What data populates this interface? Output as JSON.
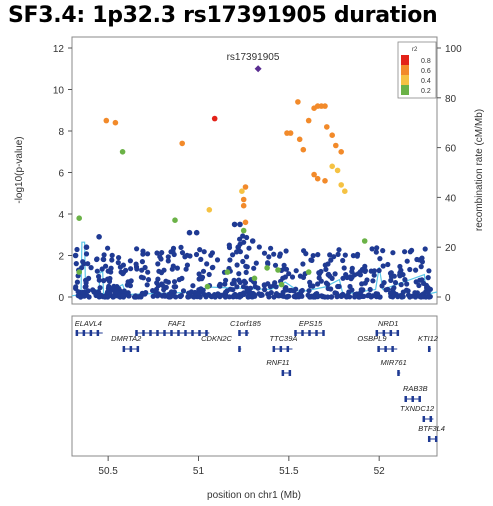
{
  "slide_title": "SF3.4: 1p32.3 rs17391905 duration",
  "colors": {
    "r2_high": "#e32219",
    "r2_08": "#f28a2a",
    "r2_06": "#f5c243",
    "r2_04": "#6bb247",
    "r2_02": "#1f3a93",
    "recomb_line": "#5bc8e8",
    "gene": "#1f3a93"
  },
  "chart_data": [
    {
      "type": "scatter",
      "title": "rs17391905",
      "ylabel": "-log10(p-value)",
      "y2label": "recombination rate (cM/Mb)",
      "ylim": [
        0,
        12
      ],
      "y2lim": [
        0,
        100
      ],
      "yticks": [
        0,
        2,
        4,
        6,
        8,
        10,
        12
      ],
      "y2ticks": [
        0,
        20,
        40,
        60,
        80,
        100
      ],
      "xlim": [
        50.3,
        52.32
      ],
      "legend": {
        "title": "r2",
        "position": "top-right",
        "labels": [
          "0.8",
          "0.6",
          "0.4",
          "0.2"
        ]
      },
      "lead_snp": {
        "name": "rs17391905",
        "x": 51.33,
        "y": 11.0
      },
      "points": [
        {
          "x": 50.49,
          "y": 8.5,
          "r2": "0.6"
        },
        {
          "x": 50.54,
          "y": 8.4,
          "r2": "0.6"
        },
        {
          "x": 50.58,
          "y": 7.0,
          "r2": "0.4"
        },
        {
          "x": 50.91,
          "y": 7.4,
          "r2": "0.6"
        },
        {
          "x": 51.09,
          "y": 8.6,
          "r2": "0.8"
        },
        {
          "x": 51.26,
          "y": 5.3,
          "r2": "0.6"
        },
        {
          "x": 51.24,
          "y": 5.1,
          "r2": "0.4"
        },
        {
          "x": 51.25,
          "y": 4.7,
          "r2": "0.6"
        },
        {
          "x": 51.25,
          "y": 4.4,
          "r2": "0.6"
        },
        {
          "x": 51.26,
          "y": 3.6,
          "r2": "0.6"
        },
        {
          "x": 51.25,
          "y": 3.2,
          "r2": "0.4"
        },
        {
          "x": 51.49,
          "y": 7.9,
          "r2": "0.6"
        },
        {
          "x": 51.51,
          "y": 7.9,
          "r2": "0.6"
        },
        {
          "x": 51.55,
          "y": 9.4,
          "r2": "0.6"
        },
        {
          "x": 51.56,
          "y": 7.6,
          "r2": "0.6"
        },
        {
          "x": 51.58,
          "y": 7.1,
          "r2": "0.6"
        },
        {
          "x": 51.61,
          "y": 8.5,
          "r2": "0.6"
        },
        {
          "x": 51.64,
          "y": 9.1,
          "r2": "0.6"
        },
        {
          "x": 51.66,
          "y": 9.2,
          "r2": "0.6"
        },
        {
          "x": 51.68,
          "y": 9.2,
          "r2": "0.6"
        },
        {
          "x": 51.7,
          "y": 9.2,
          "r2": "0.6"
        },
        {
          "x": 51.64,
          "y": 5.9,
          "r2": "0.6"
        },
        {
          "x": 51.66,
          "y": 5.7,
          "r2": "0.6"
        },
        {
          "x": 51.7,
          "y": 5.6,
          "r2": "0.6"
        },
        {
          "x": 51.71,
          "y": 8.2,
          "r2": "0.6"
        },
        {
          "x": 51.74,
          "y": 7.8,
          "r2": "0.6"
        },
        {
          "x": 51.76,
          "y": 7.3,
          "r2": "0.6"
        },
        {
          "x": 51.79,
          "y": 7.0,
          "r2": "0.6"
        },
        {
          "x": 51.74,
          "y": 6.3,
          "r2": "0.4"
        },
        {
          "x": 51.77,
          "y": 6.1,
          "r2": "0.4"
        },
        {
          "x": 51.79,
          "y": 5.4,
          "r2": "0.4"
        },
        {
          "x": 51.81,
          "y": 5.1,
          "r2": "0.4"
        },
        {
          "x": 50.34,
          "y": 3.8,
          "r2": "0.4"
        },
        {
          "x": 50.45,
          "y": 2.9,
          "r2": "0.2"
        },
        {
          "x": 50.87,
          "y": 3.7,
          "r2": "0.4"
        },
        {
          "x": 51.06,
          "y": 4.2,
          "r2": "0.4"
        },
        {
          "x": 51.2,
          "y": 3.5,
          "r2": "0.2"
        },
        {
          "x": 51.23,
          "y": 3.5,
          "r2": "0.2"
        },
        {
          "x": 51.22,
          "y": 2.4,
          "r2": "0.2"
        },
        {
          "x": 50.95,
          "y": 3.1,
          "r2": "0.2"
        },
        {
          "x": 50.99,
          "y": 3.1,
          "r2": "0.2"
        },
        {
          "x": 50.32,
          "y": 2.0,
          "r2": "0.2"
        },
        {
          "x": 50.38,
          "y": 2.4,
          "r2": "0.2"
        },
        {
          "x": 50.34,
          "y": 1.2,
          "r2": "0.4"
        },
        {
          "x": 51.92,
          "y": 2.7,
          "r2": "0.4"
        },
        {
          "x": 51.3,
          "y": 2.7,
          "r2": "0.2"
        },
        {
          "x": 51.38,
          "y": 1.4,
          "r2": "0.4"
        },
        {
          "x": 51.44,
          "y": 1.3,
          "r2": "0.4"
        },
        {
          "x": 51.16,
          "y": 1.2,
          "r2": "0.4"
        },
        {
          "x": 51.61,
          "y": 1.2,
          "r2": "0.4"
        },
        {
          "x": 51.31,
          "y": 0.9,
          "r2": "0.4"
        },
        {
          "x": 51.05,
          "y": 0.5,
          "r2": "0.4"
        },
        {
          "x": 51.46,
          "y": 0.6,
          "r2": "0.4"
        }
      ],
      "recomb_rate": [
        {
          "x": 50.3,
          "y": 0.5
        },
        {
          "x": 50.35,
          "y": 1
        },
        {
          "x": 50.355,
          "y": 22
        },
        {
          "x": 50.37,
          "y": 22
        },
        {
          "x": 50.375,
          "y": 2
        },
        {
          "x": 50.45,
          "y": 3
        },
        {
          "x": 50.455,
          "y": 10
        },
        {
          "x": 50.47,
          "y": 10
        },
        {
          "x": 50.475,
          "y": 1
        },
        {
          "x": 50.58,
          "y": 5
        },
        {
          "x": 50.6,
          "y": 1
        },
        {
          "x": 51.0,
          "y": 2
        },
        {
          "x": 51.05,
          "y": 4
        },
        {
          "x": 51.4,
          "y": 3
        },
        {
          "x": 51.48,
          "y": 6
        },
        {
          "x": 51.56,
          "y": 2
        },
        {
          "x": 51.7,
          "y": 4
        },
        {
          "x": 51.78,
          "y": 7
        },
        {
          "x": 51.8,
          "y": 1
        },
        {
          "x": 51.98,
          "y": 3
        },
        {
          "x": 52.0,
          "y": 12
        },
        {
          "x": 52.02,
          "y": 3
        },
        {
          "x": 52.25,
          "y": 9
        },
        {
          "x": 52.26,
          "y": 1
        },
        {
          "x": 52.32,
          "y": 2
        }
      ]
    },
    {
      "type": "gene_track",
      "xlabel": "position on chr1 (Mb)",
      "xticks": [
        50.5,
        51,
        51.5,
        52
      ],
      "xlim": [
        50.3,
        52.32
      ],
      "genes": [
        {
          "name": "ELAVL4",
          "start": 50.32,
          "end": 50.47,
          "row": 0,
          "label_x": 50.39
        },
        {
          "name": "FAF1",
          "start": 50.65,
          "end": 51.06,
          "row": 0,
          "label_x": 50.88
        },
        {
          "name": "C1orf185",
          "start": 51.22,
          "end": 51.28,
          "row": 0,
          "label_x": 51.26
        },
        {
          "name": "EPS15",
          "start": 51.53,
          "end": 51.69,
          "row": 0,
          "label_x": 51.62
        },
        {
          "name": "NRD1",
          "start": 51.98,
          "end": 52.11,
          "row": 0,
          "label_x": 52.05
        },
        {
          "name": "DMRTA2",
          "start": 50.58,
          "end": 50.66,
          "row": 1,
          "label_x": 50.6
        },
        {
          "name": "CDKN2C",
          "start": 51.22,
          "end": 51.23,
          "row": 1,
          "label_x": 51.1
        },
        {
          "name": "TTC39A",
          "start": 51.41,
          "end": 51.52,
          "row": 1,
          "label_x": 51.47
        },
        {
          "name": "OSBPL9",
          "start": 51.99,
          "end": 52.1,
          "row": 1,
          "label_x": 51.96
        },
        {
          "name": "KTI12",
          "start": 52.27,
          "end": 52.28,
          "row": 1,
          "label_x": 52.27
        },
        {
          "name": "RNF11",
          "start": 51.46,
          "end": 51.5,
          "row": 2,
          "label_x": 51.44
        },
        {
          "name": "MIR761",
          "start": 52.1,
          "end": 52.1,
          "row": 2,
          "label_x": 52.08
        },
        {
          "name": "RAB3B",
          "start": 52.14,
          "end": 52.22,
          "row": 3,
          "label_x": 52.2
        },
        {
          "name": "TXNDC12",
          "start": 52.24,
          "end": 52.3,
          "row": 4,
          "label_x": 52.21
        },
        {
          "name": "BTF3L4",
          "start": 52.27,
          "end": 52.31,
          "row": 5,
          "label_x": 52.29
        }
      ]
    }
  ]
}
